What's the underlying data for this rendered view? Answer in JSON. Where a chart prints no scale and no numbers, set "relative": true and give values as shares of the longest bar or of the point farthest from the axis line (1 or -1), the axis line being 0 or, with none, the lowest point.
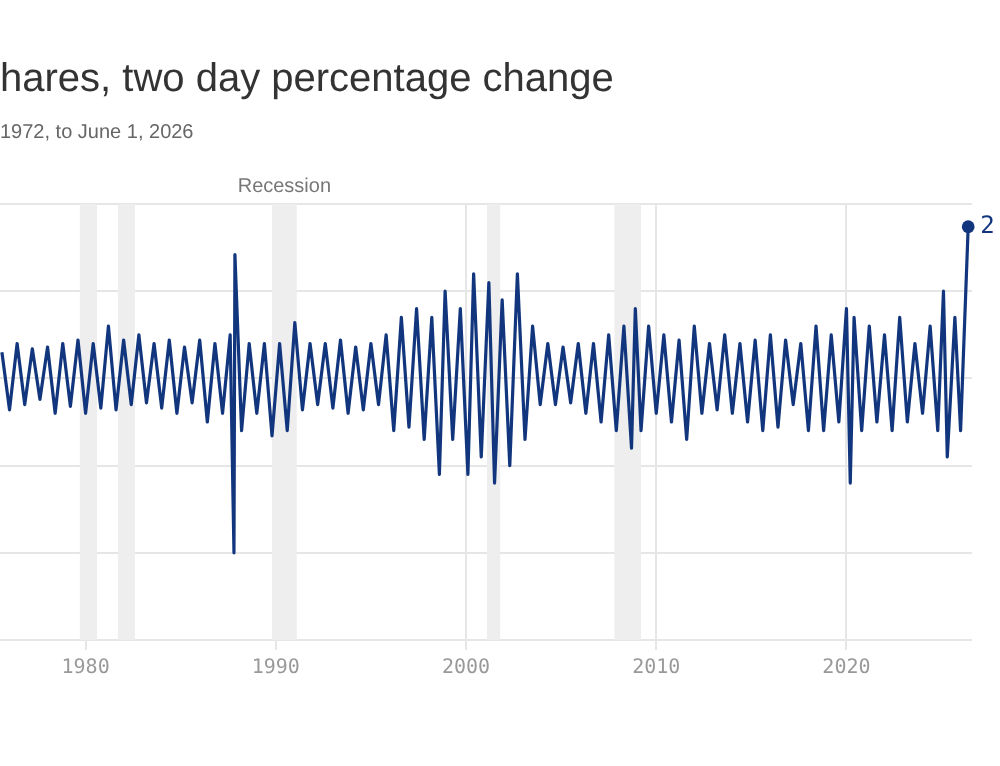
{
  "chart_data": {
    "type": "line",
    "title": "hares, two day percentage change",
    "subtitle": "1972, to June 1, 2026",
    "relative": true,
    "color": "#12367d",
    "grid": true,
    "legend": false,
    "marker": "none",
    "line_style": "solid",
    "xlim": [
      1975.5,
      2026.6
    ],
    "xticks": [
      1980,
      1990,
      2000,
      2010,
      2020
    ],
    "bands": [
      {
        "axis": "x",
        "from": 1979.7,
        "to": 1980.6,
        "label": null,
        "color": "#eeeeee"
      },
      {
        "axis": "x",
        "from": 1981.7,
        "to": 1982.6,
        "label": null,
        "color": "#eeeeee"
      },
      {
        "axis": "x",
        "from": 1989.8,
        "to": 1991.1,
        "label": "Recession",
        "color": "#eeeeee"
      },
      {
        "axis": "x",
        "from": 2001.1,
        "to": 2001.8,
        "label": null,
        "color": "#eeeeee"
      },
      {
        "axis": "x",
        "from": 2007.8,
        "to": 2009.2,
        "label": null,
        "color": "#eeeeee"
      }
    ],
    "annotations": [
      {
        "text": "2",
        "x": 2026.4,
        "y": 0.87
      }
    ],
    "x": [
      1975.6,
      1976.0,
      1976.4,
      1976.8,
      1977.2,
      1977.6,
      1978.0,
      1978.4,
      1978.8,
      1979.2,
      1979.6,
      1980.0,
      1980.4,
      1980.8,
      1981.2,
      1981.6,
      1982.0,
      1982.4,
      1982.8,
      1983.2,
      1983.6,
      1984.0,
      1984.4,
      1984.8,
      1985.2,
      1985.6,
      1986.0,
      1986.4,
      1986.8,
      1987.2,
      1987.6,
      1987.8,
      1987.85,
      1988.2,
      1988.6,
      1989.0,
      1989.4,
      1989.8,
      1990.2,
      1990.6,
      1991.0,
      1991.4,
      1991.8,
      1992.2,
      1992.6,
      1993.0,
      1993.4,
      1993.8,
      1994.2,
      1994.6,
      1995.0,
      1995.4,
      1995.8,
      1996.2,
      1996.6,
      1997.0,
      1997.4,
      1997.8,
      1998.2,
      1998.6,
      1998.9,
      1999.3,
      1999.7,
      2000.1,
      2000.4,
      2000.8,
      2001.2,
      2001.5,
      2001.9,
      2002.3,
      2002.7,
      2003.1,
      2003.5,
      2003.9,
      2004.3,
      2004.7,
      2005.1,
      2005.5,
      2005.9,
      2006.3,
      2006.7,
      2007.1,
      2007.5,
      2007.9,
      2008.3,
      2008.7,
      2008.9,
      2009.2,
      2009.6,
      2010.0,
      2010.4,
      2010.8,
      2011.2,
      2011.6,
      2012.0,
      2012.4,
      2012.8,
      2013.2,
      2013.6,
      2014.0,
      2014.4,
      2014.8,
      2015.2,
      2015.6,
      2016.0,
      2016.4,
      2016.8,
      2017.2,
      2017.6,
      2018.0,
      2018.4,
      2018.8,
      2019.2,
      2019.6,
      2020.0,
      2020.2,
      2020.4,
      2020.8,
      2021.2,
      2021.6,
      2022.0,
      2022.4,
      2022.8,
      2023.2,
      2023.6,
      2024.0,
      2024.4,
      2024.8,
      2025.1,
      2025.3,
      2025.7,
      2026.0,
      2026.4
    ],
    "values": [
      0.15,
      -0.18,
      0.2,
      -0.15,
      0.17,
      -0.12,
      0.18,
      -0.2,
      0.2,
      -0.16,
      0.22,
      -0.2,
      0.2,
      -0.17,
      0.3,
      -0.18,
      0.22,
      -0.15,
      0.25,
      -0.14,
      0.2,
      -0.17,
      0.22,
      -0.2,
      0.18,
      -0.14,
      0.22,
      -0.25,
      0.2,
      -0.2,
      0.25,
      -1,
      0.71,
      -0.3,
      0.2,
      -0.2,
      0.2,
      -0.33,
      0.2,
      -0.3,
      0.32,
      -0.18,
      0.2,
      -0.15,
      0.2,
      -0.17,
      0.22,
      -0.2,
      0.18,
      -0.18,
      0.2,
      -0.15,
      0.25,
      -0.3,
      0.35,
      -0.28,
      0.4,
      -0.35,
      0.35,
      -0.55,
      0.5,
      -0.35,
      0.4,
      -0.55,
      0.6,
      -0.45,
      0.55,
      -0.6,
      0.45,
      -0.5,
      0.6,
      -0.35,
      0.3,
      -0.15,
      0.2,
      -0.15,
      0.18,
      -0.14,
      0.2,
      -0.2,
      0.2,
      -0.25,
      0.25,
      -0.3,
      0.3,
      -0.4,
      0.4,
      -0.3,
      0.3,
      -0.2,
      0.25,
      -0.25,
      0.22,
      -0.35,
      0.3,
      -0.2,
      0.2,
      -0.18,
      0.25,
      -0.2,
      0.2,
      -0.25,
      0.22,
      -0.3,
      0.25,
      -0.28,
      0.22,
      -0.15,
      0.2,
      -0.3,
      0.3,
      -0.3,
      0.25,
      -0.25,
      0.4,
      -0.6,
      0.35,
      -0.3,
      0.3,
      -0.25,
      0.25,
      -0.3,
      0.35,
      -0.25,
      0.2,
      -0.2,
      0.3,
      -0.3,
      0.5,
      -0.45,
      0.35,
      -0.3,
      0.87
    ]
  }
}
